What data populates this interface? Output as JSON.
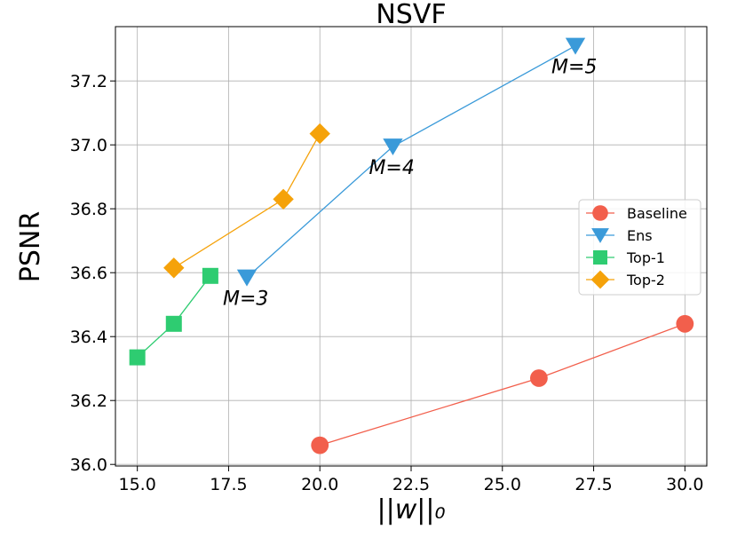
{
  "chart_data": {
    "type": "line",
    "title": "NSVF",
    "xlabel": "||w||₀",
    "ylabel": "PSNR",
    "xlim": [
      14.4,
      30.6
    ],
    "ylim": [
      35.995,
      37.37
    ],
    "xticks": [
      15.0,
      17.5,
      20.0,
      22.5,
      25.0,
      27.5,
      30.0
    ],
    "xtick_labels": [
      "15.0",
      "17.5",
      "20.0",
      "22.5",
      "25.0",
      "27.5",
      "30.0"
    ],
    "yticks": [
      36.0,
      36.2,
      36.4,
      36.6,
      36.8,
      37.0,
      37.2
    ],
    "ytick_labels": [
      "36.0",
      "36.2",
      "36.4",
      "36.6",
      "36.8",
      "37.0",
      "37.2"
    ],
    "grid": true,
    "legend_position": "center-right",
    "series": [
      {
        "name": "Baseline",
        "color": "#f25f4c",
        "marker": "circle",
        "x": [
          20,
          26,
          30
        ],
        "y": [
          36.06,
          36.27,
          36.44
        ]
      },
      {
        "name": "Ens",
        "color": "#3a9ad9",
        "marker": "triangle-down",
        "x": [
          18,
          22,
          27
        ],
        "y": [
          36.585,
          36.995,
          37.31
        ]
      },
      {
        "name": "Top-1",
        "color": "#2ecc71",
        "marker": "square",
        "x": [
          15,
          16,
          17
        ],
        "y": [
          36.335,
          36.44,
          36.59
        ]
      },
      {
        "name": "Top-2",
        "color": "#f5a20a",
        "marker": "diamond",
        "x": [
          16,
          19,
          20
        ],
        "y": [
          36.615,
          36.83,
          37.035
        ]
      }
    ],
    "annotations": [
      {
        "text": "M=3",
        "x": 18,
        "y": 36.585
      },
      {
        "text": "M=4",
        "x": 22,
        "y": 36.995
      },
      {
        "text": "M=5",
        "x": 27,
        "y": 37.31
      }
    ]
  }
}
